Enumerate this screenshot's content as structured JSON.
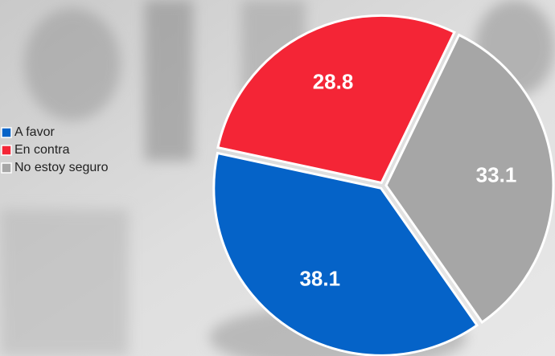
{
  "chart_data": {
    "type": "pie",
    "categories": [
      "A favor",
      "En contra",
      "No estoy seguro"
    ],
    "values": [
      38.1,
      28.8,
      33.1
    ],
    "colors": [
      "#0563c8",
      "#f42536",
      "#a6a6a6"
    ],
    "legend": "left"
  }
}
